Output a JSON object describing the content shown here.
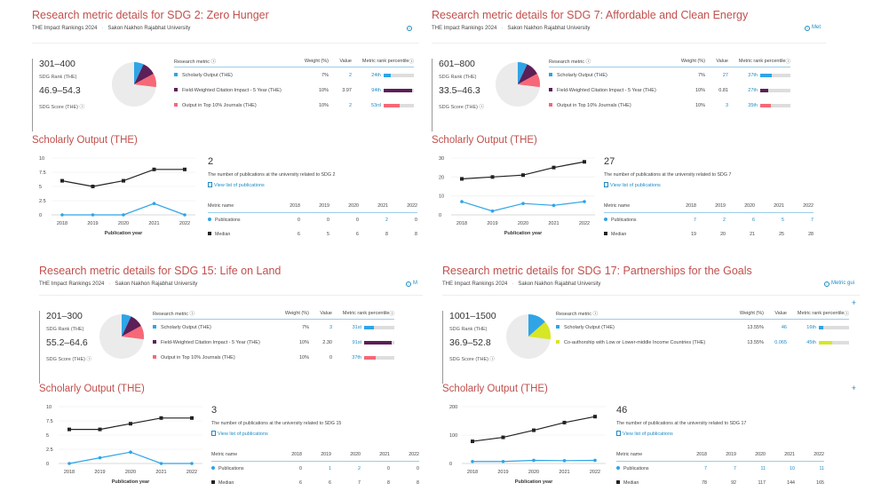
{
  "colors": {
    "title": "#c0504d",
    "link": "#1e8bc3",
    "scholarly_output": "#2fa4e7",
    "fwci": "#5c1f57",
    "top10": "#f66877",
    "coauthorship": "#d7e625",
    "pie_rest": "#ebebeb",
    "median": "#222222"
  },
  "common": {
    "subtitle_ranking": "THE Impact Rankings 2024",
    "subtitle_university": "Sakon Nakhon Rajabhat University",
    "rank_label": "SDG Rank (THE)",
    "score_label": "SDG Score (THE)",
    "table_head_metric": "Research metric",
    "table_head_weight": "Weight (%)",
    "table_head_value": "Value",
    "table_head_percentile": "Metric rank percentile",
    "scholarly_title": "Scholarly Output (THE)",
    "x_axis_label": "Publication year",
    "view_list": "View list of publications",
    "metric_name": "Metric name",
    "row_publications": "Publications",
    "row_median": "Median",
    "years": [
      "2018",
      "2019",
      "2020",
      "2021",
      "2022"
    ]
  },
  "panels": [
    {
      "title": "Research metric details for SDG 2: Zero Hunger",
      "guide": "",
      "rank": "301–400",
      "score": "46.9–54.3",
      "metrics": [
        {
          "name": "Scholarly Output (THE)",
          "weight": "7%",
          "value": "2",
          "percentile": "24th",
          "pct": 24,
          "color": "#2fa4e7",
          "value_link": true
        },
        {
          "name": "Field-Weighted Citation Impact - 5 Year (THE)",
          "weight": "10%",
          "value": "3.97",
          "percentile": "94th",
          "pct": 94,
          "color": "#5c1f57",
          "value_link": false
        },
        {
          "name": "Output in Top 10% Journals (THE)",
          "weight": "10%",
          "value": "2",
          "percentile": "53rd",
          "pct": 53,
          "color": "#f66877",
          "value_link": true
        }
      ],
      "pie_weights": [
        7,
        10,
        10
      ],
      "total": "2",
      "description": "The number of publications at the university related to SDG 2",
      "publications": [
        0,
        0,
        0,
        2,
        0
      ],
      "median": [
        6,
        5,
        6,
        8,
        8
      ],
      "yticks": [
        "0",
        "2.5",
        "5",
        "7.5",
        "10"
      ],
      "ymax": 10
    },
    {
      "title": "Research metric details for SDG 7: Affordable and Clean Energy",
      "guide": "Met",
      "rank": "601–800",
      "score": "33.5–46.3",
      "metrics": [
        {
          "name": "Scholarly Output (THE)",
          "weight": "7%",
          "value": "27",
          "percentile": "37th",
          "pct": 37,
          "color": "#2fa4e7",
          "value_link": true
        },
        {
          "name": "Field-Weighted Citation Impact - 5 Year (THE)",
          "weight": "10%",
          "value": "0.81",
          "percentile": "27th",
          "pct": 27,
          "color": "#5c1f57",
          "value_link": false
        },
        {
          "name": "Output in Top 10% Journals (THE)",
          "weight": "10%",
          "value": "3",
          "percentile": "35th",
          "pct": 35,
          "color": "#f66877",
          "value_link": true
        }
      ],
      "pie_weights": [
        7,
        10,
        10
      ],
      "total": "27",
      "description": "The number of publications at the university related to SDG 7",
      "publications": [
        7,
        2,
        6,
        5,
        7
      ],
      "median": [
        19,
        20,
        21,
        25,
        28
      ],
      "yticks": [
        "0",
        "10",
        "20",
        "30"
      ],
      "ymax": 30
    },
    {
      "title": "Research metric details for SDG 15: Life on Land",
      "guide": "M",
      "rank": "201–300",
      "score": "55.2–64.6",
      "metrics": [
        {
          "name": "Scholarly Output (THE)",
          "weight": "7%",
          "value": "3",
          "percentile": "31st",
          "pct": 31,
          "color": "#2fa4e7",
          "value_link": true
        },
        {
          "name": "Field-Weighted Citation Impact - 5 Year (THE)",
          "weight": "10%",
          "value": "2.30",
          "percentile": "91st",
          "pct": 91,
          "color": "#5c1f57",
          "value_link": false
        },
        {
          "name": "Output in Top 10% Journals (THE)",
          "weight": "10%",
          "value": "0",
          "percentile": "37th",
          "pct": 37,
          "color": "#f66877",
          "value_link": false
        }
      ],
      "pie_weights": [
        7,
        10,
        10
      ],
      "total": "3",
      "description": "The number of publications at the university related to SDG 15",
      "publications": [
        0,
        1,
        2,
        0,
        0
      ],
      "median": [
        6,
        6,
        7,
        8,
        8
      ],
      "yticks": [
        "0",
        "2.5",
        "5",
        "7.5",
        "10"
      ],
      "ymax": 10
    },
    {
      "title": "Research metric details for SDG 17: Partnerships for the Goals",
      "guide": "Metric gui",
      "rank": "1001–1500",
      "score": "36.9–52.8",
      "metrics": [
        {
          "name": "Scholarly Output (THE)",
          "weight": "13.55%",
          "value": "46",
          "percentile": "16th",
          "pct": 16,
          "color": "#2fa4e7",
          "value_link": true
        },
        {
          "name": "Co-authorship with Low or Lower-middle Income Countries (THE)",
          "weight": "13.55%",
          "value": "0.065",
          "percentile": "45th",
          "pct": 45,
          "color": "#d7e625",
          "value_link": true
        }
      ],
      "pie_weights": [
        13.55,
        13.55
      ],
      "total": "46",
      "description": "The number of publications at the university related to SDG 17",
      "publications": [
        7,
        7,
        11,
        10,
        11
      ],
      "median": [
        78,
        92,
        117,
        144,
        165
      ],
      "yticks": [
        "0",
        "100",
        "200"
      ],
      "ymax": 200
    }
  ],
  "chart_data": [
    {
      "type": "line",
      "title": "Scholarly Output (THE) — SDG 2",
      "xlabel": "Publication year",
      "ylabel": "",
      "x": [
        "2018",
        "2019",
        "2020",
        "2021",
        "2022"
      ],
      "ylim": [
        0,
        10
      ],
      "series": [
        {
          "name": "Publications",
          "values": [
            0,
            0,
            0,
            2,
            0
          ]
        },
        {
          "name": "Median",
          "values": [
            6,
            5,
            6,
            8,
            8
          ]
        }
      ]
    },
    {
      "type": "line",
      "title": "Scholarly Output (THE) — SDG 7",
      "xlabel": "Publication year",
      "ylabel": "",
      "x": [
        "2018",
        "2019",
        "2020",
        "2021",
        "2022"
      ],
      "ylim": [
        0,
        30
      ],
      "series": [
        {
          "name": "Publications",
          "values": [
            7,
            2,
            6,
            5,
            7
          ]
        },
        {
          "name": "Median",
          "values": [
            19,
            20,
            21,
            25,
            28
          ]
        }
      ]
    },
    {
      "type": "line",
      "title": "Scholarly Output (THE) — SDG 15",
      "xlabel": "Publication year",
      "ylabel": "",
      "x": [
        "2018",
        "2019",
        "2020",
        "2021",
        "2022"
      ],
      "ylim": [
        0,
        10
      ],
      "series": [
        {
          "name": "Publications",
          "values": [
            0,
            1,
            2,
            0,
            0
          ]
        },
        {
          "name": "Median",
          "values": [
            6,
            6,
            7,
            8,
            8
          ]
        }
      ]
    },
    {
      "type": "line",
      "title": "Scholarly Output (THE) — SDG 17",
      "xlabel": "Publication year",
      "ylabel": "",
      "x": [
        "2018",
        "2019",
        "2020",
        "2021",
        "2022"
      ],
      "ylim": [
        0,
        200
      ],
      "series": [
        {
          "name": "Publications",
          "values": [
            7,
            7,
            11,
            10,
            11
          ]
        },
        {
          "name": "Median",
          "values": [
            78,
            92,
            117,
            144,
            165
          ]
        }
      ]
    }
  ]
}
